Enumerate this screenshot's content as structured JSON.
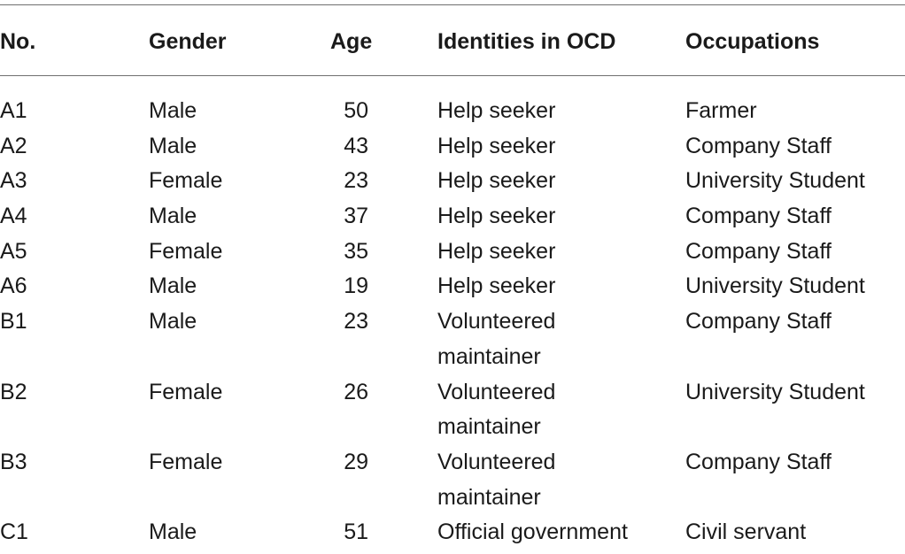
{
  "table": {
    "headers": {
      "no": "No.",
      "gender": "Gender",
      "age": "Age",
      "identity": "Identities in OCD",
      "occupation": "Occupations"
    },
    "rows": [
      {
        "no": "A1",
        "gender": "Male",
        "age": "50",
        "identity": "Help seeker",
        "occupation": "Farmer"
      },
      {
        "no": "A2",
        "gender": "Male",
        "age": "43",
        "identity": "Help seeker",
        "occupation": "Company Staff"
      },
      {
        "no": "A3",
        "gender": "Female",
        "age": "23",
        "identity": "Help seeker",
        "occupation": "University Student"
      },
      {
        "no": "A4",
        "gender": "Male",
        "age": "37",
        "identity": "Help seeker",
        "occupation": "Company Staff"
      },
      {
        "no": "A5",
        "gender": "Female",
        "age": "35",
        "identity": "Help seeker",
        "occupation": "Company Staff"
      },
      {
        "no": "A6",
        "gender": "Male",
        "age": "19",
        "identity": "Help seeker",
        "occupation": "University Student"
      },
      {
        "no": "B1",
        "gender": "Male",
        "age": "23",
        "identity_line1": "Volunteered",
        "identity_line2": "maintainer",
        "occupation": "Company Staff"
      },
      {
        "no": "B2",
        "gender": "Female",
        "age": "26",
        "identity_line1": "Volunteered",
        "identity_line2": "maintainer",
        "occupation": "University Student"
      },
      {
        "no": "B3",
        "gender": "Female",
        "age": "29",
        "identity_line1": "Volunteered",
        "identity_line2": "maintainer",
        "occupation": "Company Staff"
      },
      {
        "no": "C1",
        "gender": "Male",
        "age": "51",
        "identity": "Official government",
        "occupation": "Civil servant"
      }
    ]
  }
}
